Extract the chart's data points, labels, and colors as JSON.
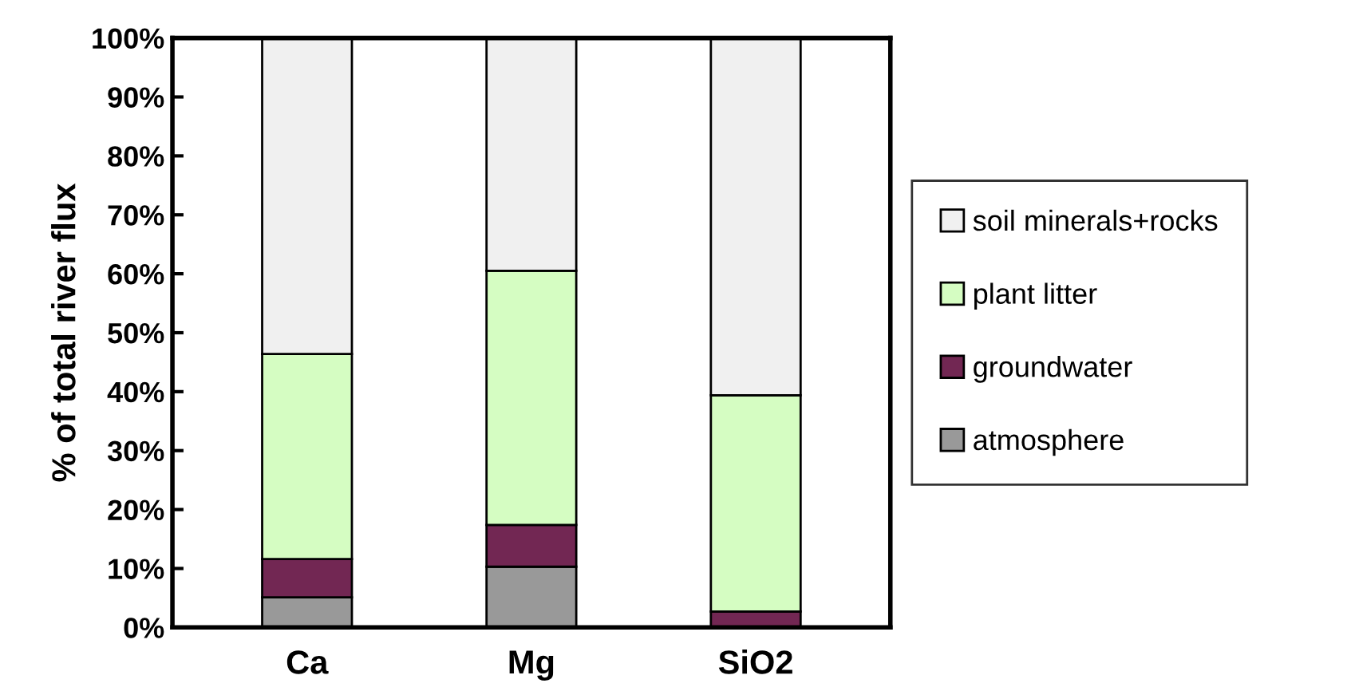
{
  "chart_data": {
    "type": "bar",
    "stacked": true,
    "ylabel": "% of total river flux",
    "categories": [
      "Ca",
      "Mg",
      "SiO2"
    ],
    "series": [
      {
        "name": "atmosphere",
        "color": "#999999",
        "values": [
          5.1,
          10.3,
          0
        ]
      },
      {
        "name": "groundwater",
        "color": "#722753",
        "values": [
          6.5,
          7.1,
          2.7
        ]
      },
      {
        "name": "plant litter",
        "color": "#d5fdc2",
        "values": [
          34.8,
          43.1,
          36.7
        ]
      },
      {
        "name": "soil minerals+rocks",
        "color": "#f0f0f0",
        "values": [
          53.6,
          39.5,
          60.6
        ]
      }
    ],
    "ylim": [
      0,
      100
    ],
    "yticks": [
      {
        "value": 0,
        "label": "0%"
      },
      {
        "value": 10,
        "label": "10%"
      },
      {
        "value": 20,
        "label": "20%"
      },
      {
        "value": 30,
        "label": "30%"
      },
      {
        "value": 40,
        "label": "40%"
      },
      {
        "value": 50,
        "label": "50%"
      },
      {
        "value": 60,
        "label": "60%"
      },
      {
        "value": 70,
        "label": "70%"
      },
      {
        "value": 80,
        "label": "80%"
      },
      {
        "value": 90,
        "label": "90%"
      },
      {
        "value": 100,
        "label": "100%"
      }
    ],
    "legend": "right",
    "grid": false
  }
}
